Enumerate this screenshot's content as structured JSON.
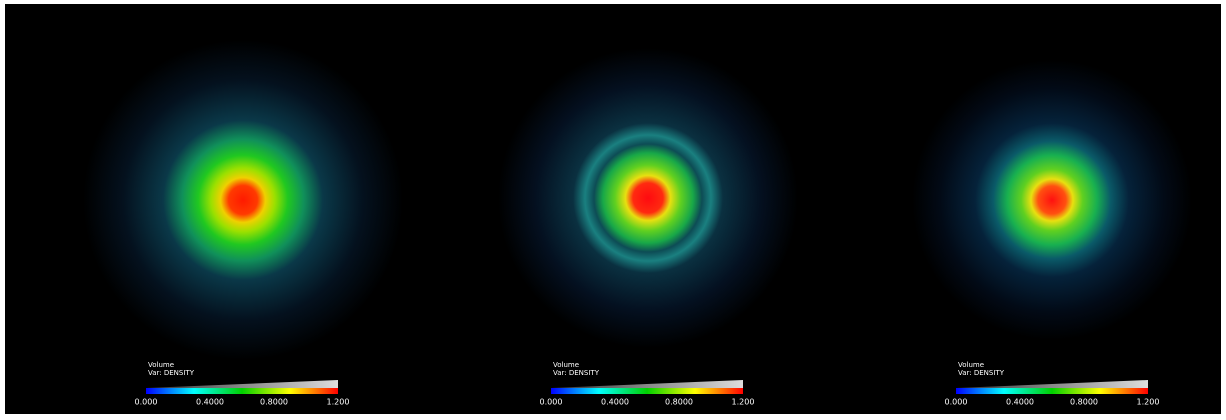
{
  "panels": [
    {
      "legend": {
        "title": "Volume",
        "variable": "Var: DENSITY",
        "ticks": [
          "0.000",
          "0.4000",
          "0.8000",
          "1.200"
        ]
      }
    },
    {
      "legend": {
        "title": "Volume",
        "variable": "Var: DENSITY",
        "ticks": [
          "0.000",
          "0.4000",
          "0.8000",
          "1.200"
        ]
      }
    },
    {
      "legend": {
        "title": "Volume",
        "variable": "Var: DENSITY",
        "ticks": [
          "0.000",
          "0.4000",
          "0.8000",
          "1.200"
        ]
      }
    }
  ]
}
